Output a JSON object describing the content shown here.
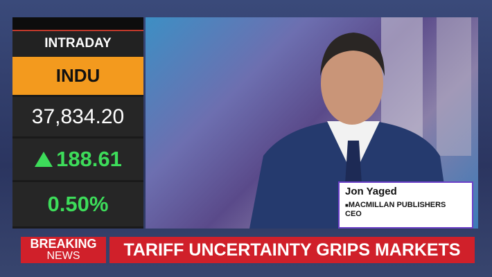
{
  "ticker": {
    "label": "INTRADAY",
    "symbol": "INDU",
    "price": "37,834.20",
    "change": "188.61",
    "percent": "0.50%"
  },
  "lower_third": {
    "name": "Jon Yaged",
    "title_lines": [
      "MACMILLAN PUBLISHERS",
      "CEO"
    ]
  },
  "banner": {
    "tag_lines": [
      "BREAKING",
      "NEWS"
    ],
    "headline": "TARIFF UNCERTAINTY GRIPS MARKETS"
  }
}
